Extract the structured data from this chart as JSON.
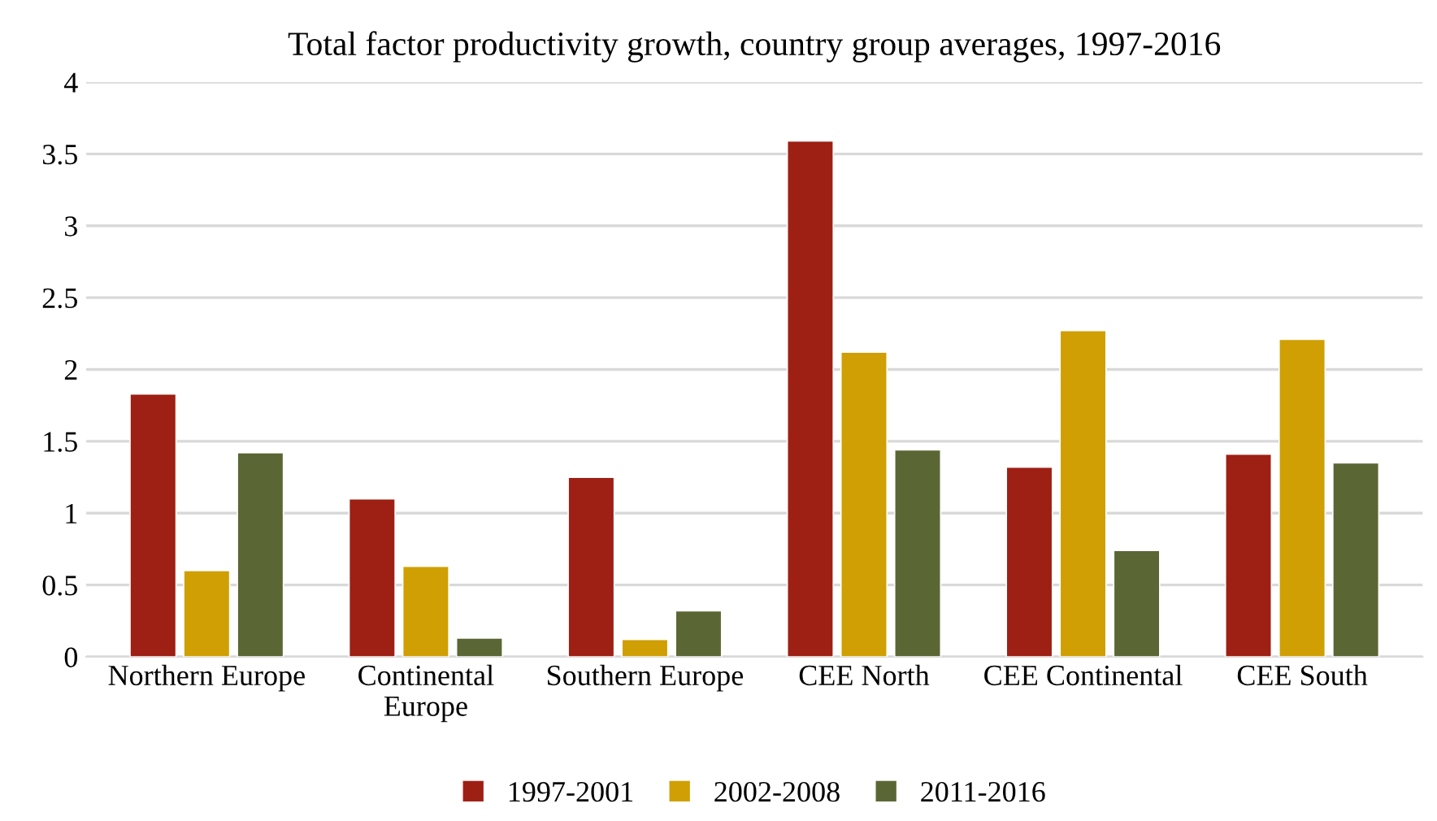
{
  "chart_data": {
    "type": "bar",
    "title": "Total factor productivity growth, country group averages, 1997-2016",
    "categories": [
      "Northern Europe",
      "Continental\nEurope",
      "Southern Europe",
      "CEE North",
      "CEE Continental",
      "CEE South"
    ],
    "series": [
      {
        "name": "1997-2001",
        "color": "#9e1f14",
        "values": [
          1.83,
          1.1,
          1.25,
          3.59,
          1.32,
          1.41
        ]
      },
      {
        "name": "2002-2008",
        "color": "#cf9f03",
        "values": [
          0.6,
          0.63,
          0.12,
          2.12,
          2.27,
          2.21
        ]
      },
      {
        "name": "2011-2016",
        "color": "#5a6734",
        "values": [
          1.42,
          0.13,
          0.32,
          1.44,
          0.74,
          1.35
        ]
      }
    ],
    "ylim": [
      0,
      4
    ],
    "yticks": [
      0,
      0.5,
      1,
      1.5,
      2,
      2.5,
      3,
      3.5,
      4
    ],
    "grid": "y",
    "legend": "bottom"
  }
}
